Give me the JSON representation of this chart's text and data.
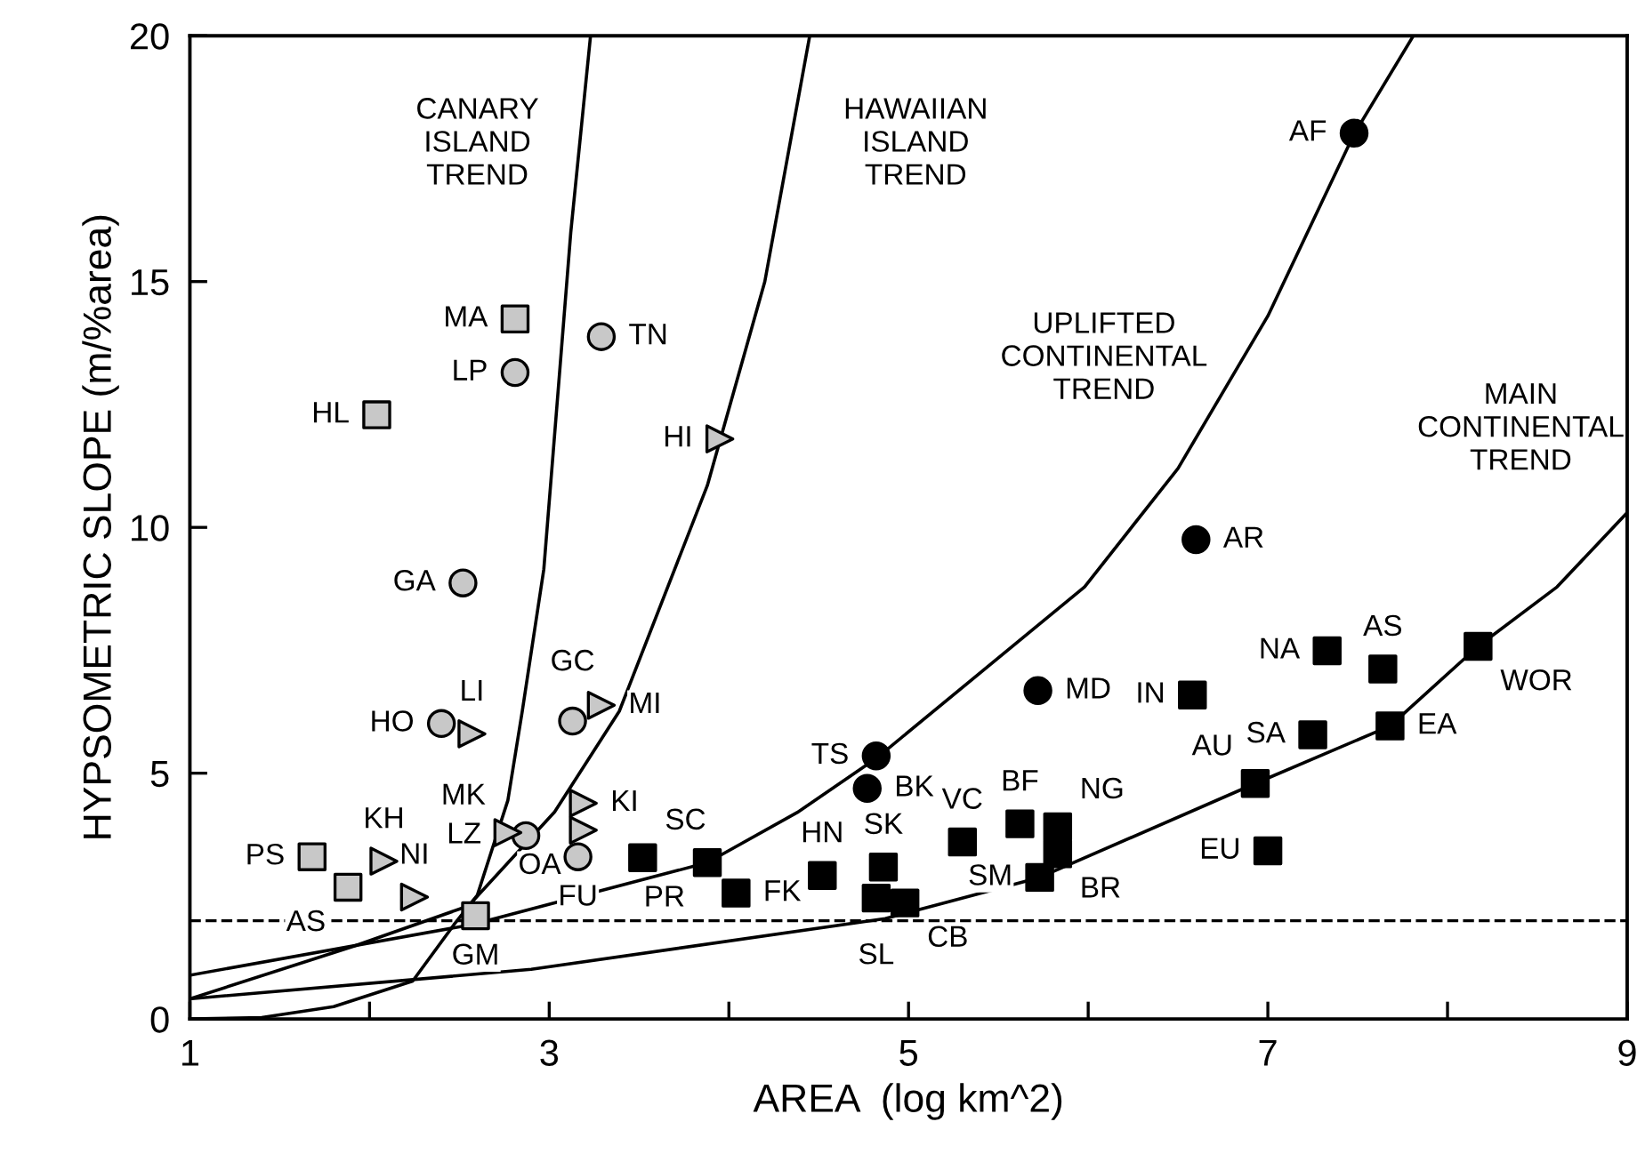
{
  "chart_data": {
    "type": "scatter",
    "xlabel": "AREA  (log km^2)",
    "ylabel": "HYPSOMETRIC SLOPE (m/%area)",
    "xlim": [
      1,
      9
    ],
    "ylim": [
      0,
      20
    ],
    "xticks": [
      1,
      {
        "value": 2,
        "label": null
      },
      3,
      {
        "value": 4,
        "label": null
      },
      5,
      {
        "value": 6,
        "label": null
      },
      7,
      {
        "value": 8,
        "label": null
      },
      9
    ],
    "yticks": [
      0,
      5,
      10,
      15,
      20
    ],
    "grid": false,
    "series": [
      {
        "marker": "square",
        "color": "#c8c8c8",
        "x": [
          2.81,
          2.04,
          1.68,
          1.88,
          2.59
        ],
        "values": [
          14.24,
          12.29,
          3.3,
          2.68,
          2.1
        ]
      },
      {
        "marker": "circle",
        "color": "#c8c8c8",
        "x": [
          2.81,
          3.29,
          2.52,
          2.4,
          3.13,
          2.87,
          3.16
        ],
        "values": [
          13.15,
          13.88,
          8.87,
          6.01,
          6.06,
          3.73,
          3.3
        ]
      },
      {
        "marker": "triangle",
        "color": "#c8c8c8",
        "x": [
          2.57,
          3.29,
          3.19,
          3.19,
          2.77,
          2.08,
          2.25,
          3.95
        ],
        "values": [
          5.8,
          6.38,
          4.39,
          3.84,
          3.79,
          3.21,
          2.48,
          11.8
        ]
      },
      {
        "marker": "square",
        "color": "#000000",
        "x": [
          3.52,
          3.88,
          4.04,
          4.52,
          4.86,
          4.82,
          4.98,
          5.3,
          5.62,
          5.83,
          5.83,
          5.73,
          6.58,
          7.33,
          7.64,
          7.25,
          7.68,
          8.17,
          6.93,
          7.0
        ],
        "values": [
          3.28,
          3.18,
          2.56,
          2.92,
          3.09,
          2.46,
          2.36,
          3.6,
          3.97,
          3.91,
          3.36,
          2.88,
          6.59,
          7.49,
          7.12,
          5.78,
          5.96,
          7.58,
          4.79,
          3.42
        ]
      },
      {
        "marker": "circle",
        "color": "#000000",
        "x": [
          4.82,
          4.77,
          5.72,
          6.6,
          7.48
        ],
        "values": [
          5.35,
          4.69,
          6.68,
          9.75,
          18.02
        ]
      },
      {
        "type": "line",
        "marker": "none",
        "color": "#000000",
        "line_style": "solid",
        "x": [
          1.0,
          1.4,
          1.8,
          2.24,
          2.47,
          2.6,
          2.77,
          2.85,
          2.97,
          3.06,
          3.12,
          3.23
        ],
        "values": [
          0.0,
          0.03,
          0.25,
          0.77,
          1.92,
          2.52,
          4.45,
          6.26,
          9.15,
          13.25,
          16.0,
          20.0
        ]
      },
      {
        "type": "line",
        "marker": "none",
        "color": "#000000",
        "line_style": "solid",
        "x": [
          1.0,
          1.92,
          2.55,
          3.03,
          3.39,
          3.88,
          4.2,
          4.45
        ],
        "values": [
          0.41,
          1.49,
          2.3,
          4.21,
          6.26,
          10.85,
          15.0,
          20.0
        ]
      },
      {
        "type": "line",
        "marker": "none",
        "color": "#000000",
        "line_style": "solid",
        "x": [
          1.0,
          2.57,
          3.88,
          4.38,
          4.82,
          5.98,
          6.5,
          7.0,
          7.48,
          7.81
        ],
        "values": [
          0.89,
          1.92,
          3.18,
          4.2,
          5.3,
          8.79,
          11.2,
          14.3,
          18.0,
          20.0
        ]
      },
      {
        "type": "line",
        "marker": "none",
        "color": "#000000",
        "line_style": "solid",
        "x": [
          1.0,
          2.9,
          4.87,
          5.73,
          6.93,
          7.68,
          8.17,
          8.61,
          9.0
        ],
        "values": [
          0.41,
          1.01,
          2.04,
          2.88,
          4.79,
          5.96,
          7.58,
          8.79,
          10.3
        ]
      }
    ],
    "ref_lines": [
      {
        "axis": "y",
        "value": 2,
        "color": "#000000",
        "line_style": "dashed"
      }
    ],
    "annotations": [
      "CANARY\nISLAND\nTREND",
      "HAWAIIAN\nISLAND\nTREND",
      "UPLIFTED\nCONTINENTAL\nTREND",
      "MAIN\nCONTINENTAL\nTREND",
      {
        "text": "MA",
        "x": 2.81,
        "y": 14.24
      },
      {
        "text": "LP",
        "x": 2.81,
        "y": 13.15
      },
      {
        "text": "TN",
        "x": 3.29,
        "y": 13.88
      },
      {
        "text": "HL",
        "x": 2.04,
        "y": 12.29
      },
      {
        "text": "GA",
        "x": 2.52,
        "y": 8.87
      },
      {
        "text": "HO",
        "x": 2.4,
        "y": 6.01
      },
      {
        "text": "LI",
        "x": 2.57,
        "y": 5.8
      },
      {
        "text": "GC",
        "x": 3.13,
        "y": 6.06
      },
      {
        "text": "MI",
        "x": 3.29,
        "y": 6.38
      },
      {
        "text": "KI",
        "x": 3.19,
        "y": 4.39
      },
      {
        "text": "OA",
        "x": 3.19,
        "y": 3.84
      },
      {
        "text": "LZ",
        "x": 2.87,
        "y": 3.73
      },
      {
        "text": "MK",
        "x": 2.77,
        "y": 3.79
      },
      {
        "text": "FU",
        "x": 3.16,
        "y": 3.3
      },
      {
        "text": "KH",
        "x": 2.08,
        "y": 3.21
      },
      {
        "text": "PS",
        "x": 1.68,
        "y": 3.3
      },
      {
        "text": "AS",
        "x": 1.88,
        "y": 2.68
      },
      {
        "text": "NI",
        "x": 2.25,
        "y": 2.48
      },
      {
        "text": "GM",
        "x": 2.59,
        "y": 2.1
      },
      {
        "text": "SC",
        "x": 3.52,
        "y": 3.28
      },
      {
        "text": "PR",
        "x": 3.88,
        "y": 3.18
      },
      {
        "text": "FK",
        "x": 4.04,
        "y": 2.56
      },
      {
        "text": "HN",
        "x": 4.52,
        "y": 2.92
      },
      {
        "text": "SK",
        "x": 4.86,
        "y": 3.09
      },
      {
        "text": "SL",
        "x": 4.82,
        "y": 2.46
      },
      {
        "text": "CB",
        "x": 4.98,
        "y": 2.36
      },
      {
        "text": "VC",
        "x": 5.3,
        "y": 3.6
      },
      {
        "text": "BF",
        "x": 5.62,
        "y": 3.97
      },
      {
        "text": "NG",
        "x": 5.83,
        "y": 3.91
      },
      {
        "text": "BR",
        "x": 5.83,
        "y": 3.36
      },
      {
        "text": "SM",
        "x": 5.73,
        "y": 2.88
      },
      {
        "text": "TS",
        "x": 4.82,
        "y": 5.35
      },
      {
        "text": "BK",
        "x": 4.77,
        "y": 4.69
      },
      {
        "text": "MD",
        "x": 5.72,
        "y": 6.68
      },
      {
        "text": "IN",
        "x": 6.58,
        "y": 6.59
      },
      {
        "text": "NA",
        "x": 7.33,
        "y": 7.49
      },
      {
        "text": "AS",
        "x": 7.64,
        "y": 7.12
      },
      {
        "text": "SA",
        "x": 7.25,
        "y": 5.78
      },
      {
        "text": "EA",
        "x": 7.68,
        "y": 5.96
      },
      {
        "text": "WOR",
        "x": 8.17,
        "y": 7.58
      },
      {
        "text": "AU",
        "x": 6.93,
        "y": 4.79
      },
      {
        "text": "EU",
        "x": 7.0,
        "y": 3.42
      },
      {
        "text": "AF",
        "x": 7.48,
        "y": 18.02
      },
      {
        "text": "AR",
        "x": 6.6,
        "y": 9.75
      },
      {
        "text": "HI",
        "x": 3.95,
        "y": 11.8
      }
    ]
  }
}
